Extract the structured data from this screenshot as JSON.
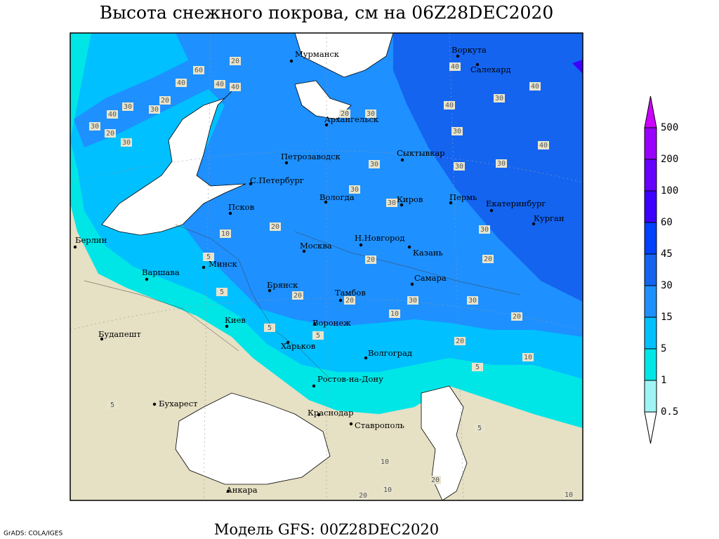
{
  "header": {
    "title": "Высота снежного покрова, см на 06Z28DEC2020"
  },
  "footer": {
    "model": "Модель GFS: 00Z28DEC2020",
    "credit": "GrADS: COLA/IGES"
  },
  "cities": [
    "Мурманск",
    "Воркута",
    "Салехард",
    "Архангельск",
    "Петрозаводск",
    "Сыктывкар",
    "С.Петербург",
    "Вологда",
    "Киров",
    "Пермь",
    "Екатеринбург",
    "Курган",
    "Псков",
    "Берлин",
    "Н.Новгород",
    "Москва",
    "Казань",
    "Минск",
    "Варшава",
    "Брянск",
    "Самара",
    "Тамбов",
    "Киев",
    "Воронеж",
    "Будапешт",
    "Харьков",
    "Волгоград",
    "Ростов-на-Дону",
    "Бухарест",
    "Краснодар",
    "Ставрополь",
    "Анкара"
  ],
  "contour_labels": [
    60,
    20,
    40,
    40,
    40,
    20,
    30,
    40,
    30,
    30,
    20,
    30,
    20,
    30,
    40,
    40,
    40,
    30,
    30,
    40,
    30,
    30,
    30,
    30,
    30,
    30,
    20,
    10,
    5,
    20,
    20,
    20,
    20,
    30,
    30,
    10,
    20,
    5,
    5,
    20,
    10,
    5,
    5,
    5,
    5,
    10,
    20,
    20,
    10,
    10
  ],
  "colorbar": {
    "levels": [
      0.5,
      1,
      5,
      15,
      30,
      45,
      60,
      100,
      200,
      500
    ],
    "colors": [
      "#ffffff",
      "#9ff5f5",
      "#00e6e6",
      "#00c0ff",
      "#1e90ff",
      "#1464f0",
      "#0040ff",
      "#3c00ff",
      "#6600ff",
      "#9900ff",
      "#cc00ff"
    ]
  }
}
